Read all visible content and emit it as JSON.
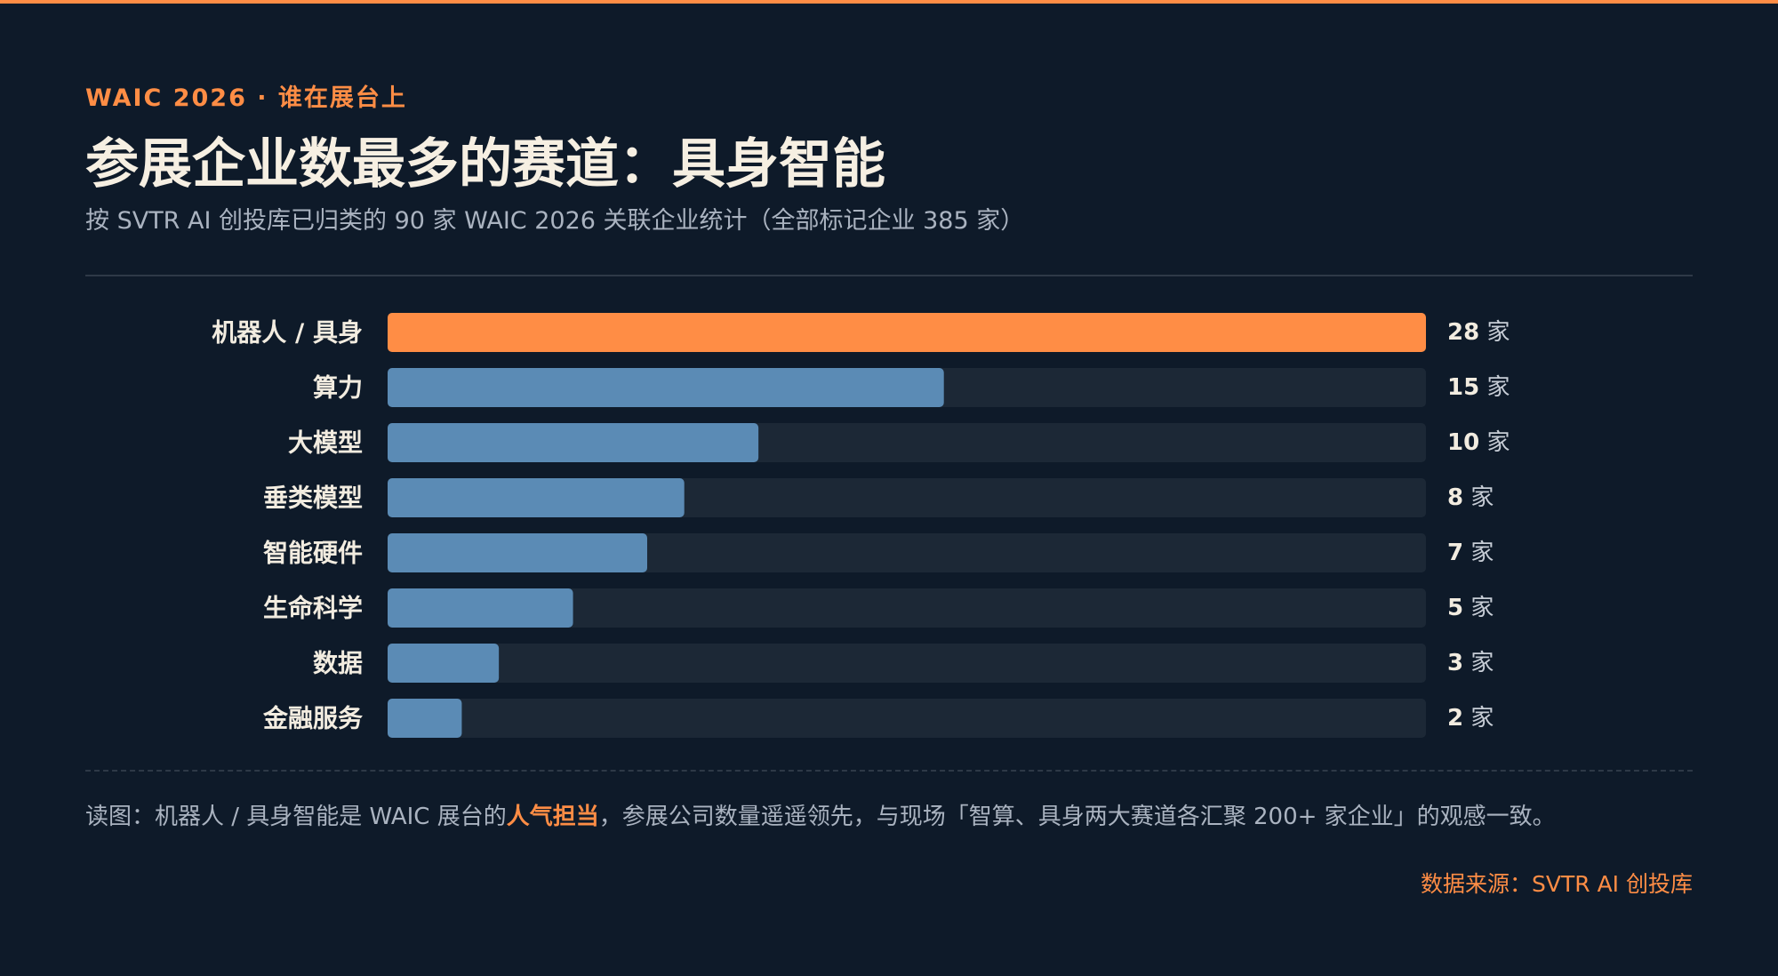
{
  "eyebrow": "WAIC 2026 · 谁在展台上",
  "title": "参展企业数最多的赛道：具身智能",
  "subtitle": "按 SVTR AI 创投库已归类的 90 家 WAIC 2026 关联企业统计（全部标记企业 385 家）",
  "note": {
    "pre": "读图：机器人 / 具身智能是 WAIC 展台的",
    "highlight": "人气担当",
    "post": "，参展公司数量遥遥领先，与现场「智算、具身两大赛道各汇聚 200+ 家企业」的观感一致。"
  },
  "source": "数据来源：SVTR AI 创投库",
  "colors": {
    "background": "#0e1a29",
    "accent": "#ff8d45",
    "bar_default": "#5b8bb5",
    "track": "#1c2836"
  },
  "chart_data": {
    "type": "bar",
    "orientation": "horizontal",
    "categories": [
      "机器人 / 具身",
      "算力",
      "大模型",
      "垂类模型",
      "智能硬件",
      "生命科学",
      "数据",
      "金融服务"
    ],
    "values": [
      28,
      15,
      10,
      8,
      7,
      5,
      3,
      2
    ],
    "unit": "家",
    "highlight_index": 0,
    "xlim": [
      0,
      28
    ],
    "grid": false,
    "legend": "none"
  }
}
